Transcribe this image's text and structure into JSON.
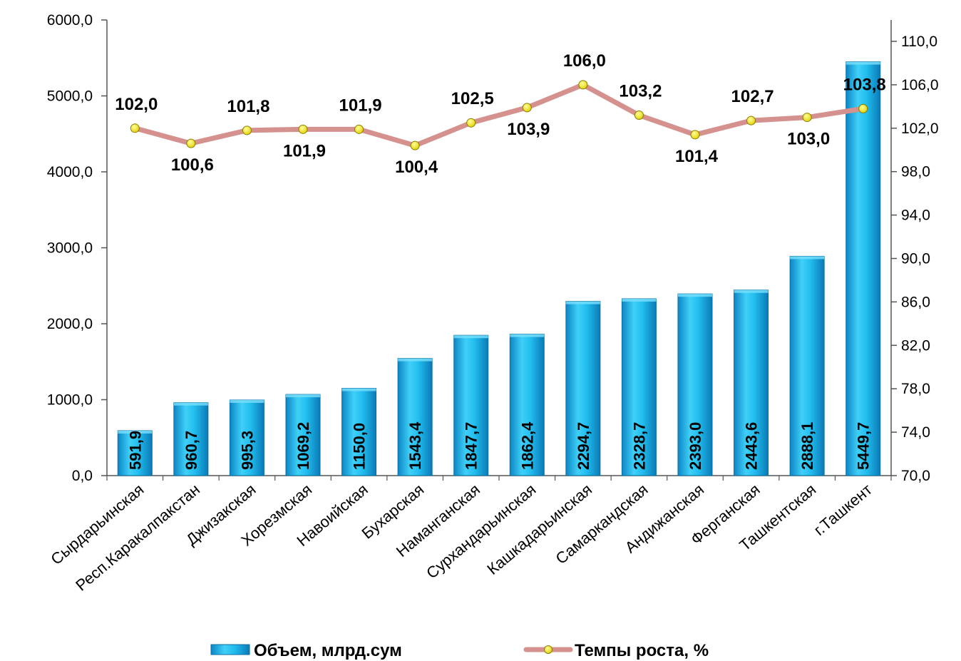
{
  "chart_data": {
    "type": "bar+line",
    "categories": [
      "Сырдарьинская",
      "Респ.Каракалпакстан",
      "Джизакская",
      "Хорезмская",
      "Навоийская",
      "Бухарская",
      "Наманганская",
      "Сурхандарьинская",
      "Кашкадарьинская",
      "Самаркандская",
      "Андижанская",
      "Ферганская",
      "Ташкентская",
      "г.Ташкент"
    ],
    "series": [
      {
        "name": "Объем, млрд.сум",
        "type": "bar",
        "axis": "left",
        "values": [
          591.9,
          960.7,
          995.3,
          1069.2,
          1150.0,
          1543.4,
          1847.7,
          1862.4,
          2294.7,
          2328.7,
          2393.0,
          2443.6,
          2888.1,
          5449.7
        ],
        "labels": [
          "591,9",
          "960,7",
          "995,3",
          "1069,2",
          "1150,0",
          "1543,4",
          "1847,7",
          "1862,4",
          "2294,7",
          "2328,7",
          "2393,0",
          "2443,6",
          "2888,1",
          "5449,7"
        ],
        "color": "#1fb5ea"
      },
      {
        "name": "Темпы роста, %",
        "type": "line",
        "axis": "right",
        "values": [
          102.0,
          100.6,
          101.8,
          101.9,
          101.9,
          100.4,
          102.5,
          103.9,
          106.0,
          103.2,
          101.4,
          102.7,
          103.0,
          103.8
        ],
        "labels": [
          "102,0",
          "100,6",
          "101,8",
          "101,9",
          "101,9",
          "100,4",
          "102,5",
          "103,9",
          "106,0",
          "103,2",
          "101,4",
          "102,7",
          "103,0",
          "103,8"
        ],
        "label_position": [
          "above",
          "below",
          "above",
          "below",
          "above",
          "below",
          "above",
          "below",
          "above",
          "above",
          "below",
          "above",
          "below",
          "above"
        ],
        "color": "#d4918d",
        "marker_color": "#f2e600"
      }
    ],
    "y_left": {
      "min": 0,
      "max": 6000,
      "ticks": [
        "0,0",
        "1000,0",
        "2000,0",
        "3000,0",
        "4000,0",
        "5000,0",
        "6000,0"
      ]
    },
    "y_right": {
      "min": 70,
      "max": 110,
      "ticks": [
        "70,0",
        "74,0",
        "78,0",
        "82,0",
        "86,0",
        "90,0",
        "94,0",
        "98,0",
        "102,0",
        "106,0",
        "110,0"
      ]
    },
    "legend": {
      "placement": "bottom",
      "items": [
        {
          "label": "Объем, млрд.сум",
          "kind": "bar"
        },
        {
          "label": "Темпы роста, %",
          "kind": "line"
        }
      ]
    },
    "grid": false
  }
}
